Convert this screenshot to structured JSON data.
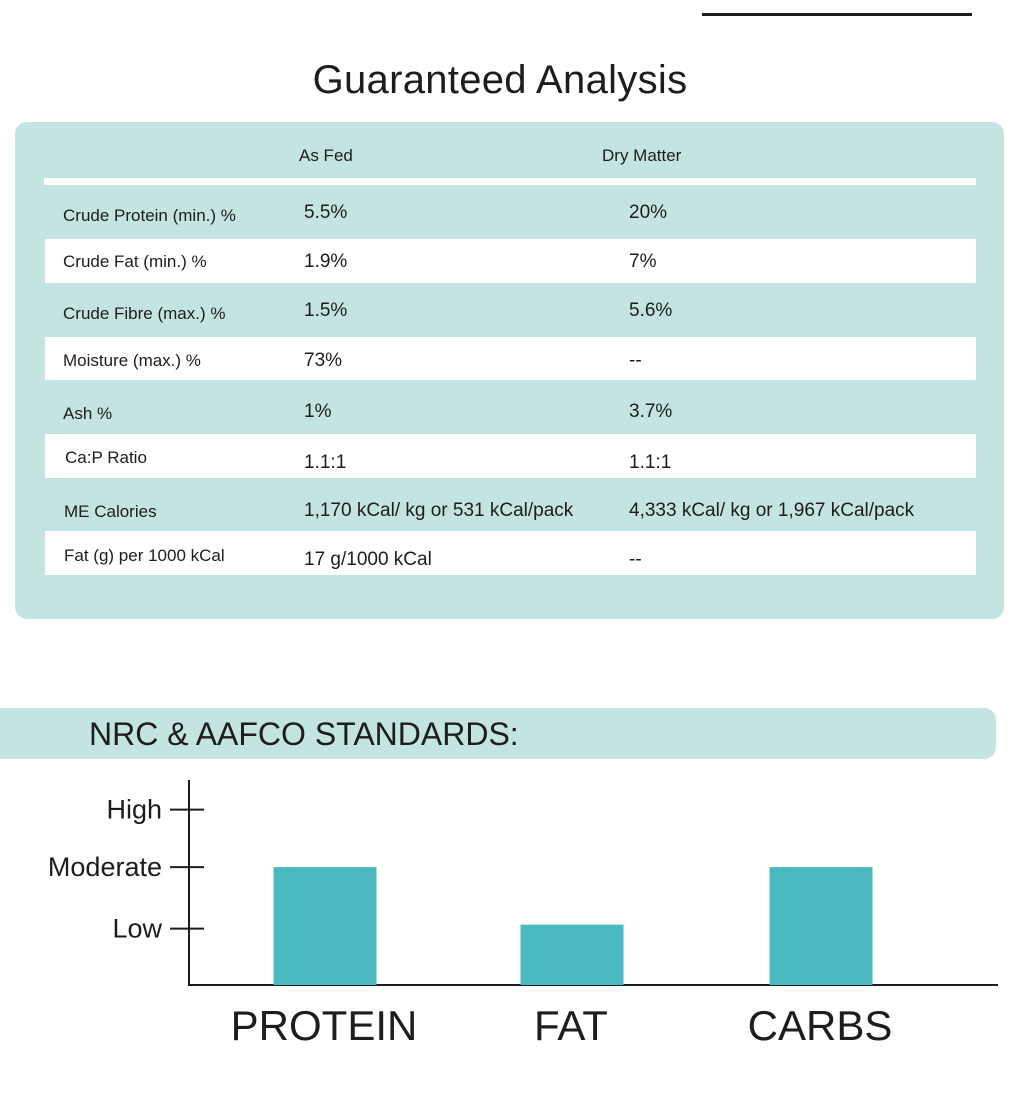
{
  "guaranteed_analysis": {
    "title": "Guaranteed Analysis",
    "columns": [
      "As Fed",
      "Dry Matter"
    ],
    "rows": [
      {
        "label": "Crude Protein (min.) %",
        "as_fed": "5.5%",
        "dry_matter": "20%"
      },
      {
        "label": "Crude Fat (min.) %",
        "as_fed": "1.9%",
        "dry_matter": "7%"
      },
      {
        "label": "Crude Fibre (max.) %",
        "as_fed": "1.5%",
        "dry_matter": "5.6%"
      },
      {
        "label": "Moisture (max.) %",
        "as_fed": "73%",
        "dry_matter": "--"
      },
      {
        "label": "Ash %",
        "as_fed": "1%",
        "dry_matter": "3.7%"
      },
      {
        "label": "Ca:P Ratio",
        "as_fed": "1.1:1",
        "dry_matter": "1.1:1"
      },
      {
        "label": "ME Calories",
        "as_fed": "1,170 kCal/ kg or 531 kCal/pack",
        "dry_matter": "4,333 kCal/ kg or 1,967 kCal/pack"
      },
      {
        "label": "Fat (g) per 1000 kCal",
        "as_fed": "17 g/1000 kCal",
        "dry_matter": "--"
      }
    ]
  },
  "standards": {
    "title": "NRC & AAFCO STANDARDS:"
  },
  "colors": {
    "panel": "#c3e4e1",
    "bar": "#4ab9c0",
    "text": "#1d1d1d"
  },
  "chart_data": {
    "type": "bar",
    "categories": [
      "PROTEIN",
      "FAT",
      "CARBS"
    ],
    "values": [
      2,
      1,
      2
    ],
    "y_levels": [
      "Low",
      "Moderate",
      "High"
    ],
    "ylim": [
      0,
      3
    ],
    "grid": false,
    "legend": "none"
  }
}
